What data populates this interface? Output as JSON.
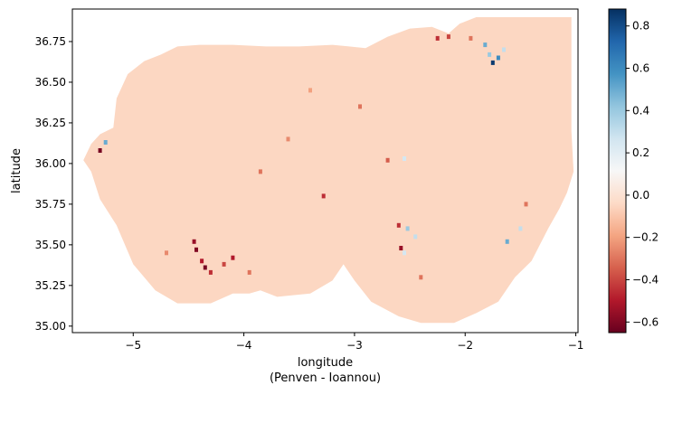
{
  "chart_data": {
    "type": "heatmap",
    "title": "",
    "xlabel": "longitude",
    "xlabel_sub": "(Penven - Ioannou)",
    "ylabel": "latitude",
    "xlim": [
      -5.55,
      -0.98
    ],
    "ylim": [
      34.96,
      36.95
    ],
    "x_ticks": [
      -5,
      -4,
      -3,
      -2,
      -1
    ],
    "x_tick_labels": [
      "−5",
      "−4",
      "−3",
      "−2",
      "−1"
    ],
    "y_ticks": [
      35.0,
      35.25,
      35.5,
      35.75,
      36.0,
      36.25,
      36.5,
      36.75
    ],
    "y_tick_labels": [
      "35.00",
      "35.25",
      "35.50",
      "35.75",
      "36.00",
      "36.25",
      "36.50",
      "36.75"
    ],
    "colorbar": {
      "cmap": "RdBu",
      "vmin": -0.65,
      "vmax": 0.88,
      "ticks": [
        -0.6,
        -0.4,
        -0.2,
        0.0,
        0.2,
        0.4,
        0.6,
        0.8
      ],
      "tick_labels": [
        "−0.6",
        "−0.4",
        "−0.2",
        "0.0",
        "0.2",
        "0.4",
        "0.6",
        "0.8"
      ]
    },
    "background_value": -0.05,
    "domain_outline_lonlat": [
      [
        -5.38,
        35.95
      ],
      [
        -5.45,
        36.02
      ],
      [
        -5.38,
        36.12
      ],
      [
        -5.3,
        36.18
      ],
      [
        -5.18,
        36.22
      ],
      [
        -5.15,
        36.4
      ],
      [
        -5.05,
        36.55
      ],
      [
        -4.9,
        36.63
      ],
      [
        -4.75,
        36.67
      ],
      [
        -4.6,
        36.72
      ],
      [
        -4.4,
        36.73
      ],
      [
        -4.1,
        36.73
      ],
      [
        -3.8,
        36.72
      ],
      [
        -3.5,
        36.72
      ],
      [
        -3.2,
        36.73
      ],
      [
        -2.9,
        36.71
      ],
      [
        -2.7,
        36.78
      ],
      [
        -2.5,
        36.83
      ],
      [
        -2.3,
        36.84
      ],
      [
        -2.15,
        36.8
      ],
      [
        -2.05,
        36.86
      ],
      [
        -1.9,
        36.9
      ],
      [
        -1.5,
        36.9
      ],
      [
        -1.04,
        36.9
      ],
      [
        -1.04,
        36.2
      ],
      [
        -1.02,
        35.95
      ],
      [
        -1.08,
        35.82
      ],
      [
        -1.15,
        35.72
      ],
      [
        -1.25,
        35.6
      ],
      [
        -1.4,
        35.4
      ],
      [
        -1.55,
        35.3
      ],
      [
        -1.7,
        35.15
      ],
      [
        -1.9,
        35.08
      ],
      [
        -2.1,
        35.02
      ],
      [
        -2.4,
        35.02
      ],
      [
        -2.6,
        35.06
      ],
      [
        -2.85,
        35.15
      ],
      [
        -3.0,
        35.28
      ],
      [
        -3.1,
        35.38
      ],
      [
        -3.2,
        35.28
      ],
      [
        -3.4,
        35.2
      ],
      [
        -3.7,
        35.18
      ],
      [
        -3.85,
        35.22
      ],
      [
        -3.95,
        35.2
      ],
      [
        -4.1,
        35.2
      ],
      [
        -4.3,
        35.14
      ],
      [
        -4.6,
        35.14
      ],
      [
        -4.8,
        35.22
      ],
      [
        -5.0,
        35.38
      ],
      [
        -5.15,
        35.62
      ],
      [
        -5.3,
        35.78
      ],
      [
        -5.38,
        35.95
      ]
    ],
    "anomalies": [
      {
        "lon": -4.45,
        "lat": 35.52,
        "value": -0.55
      },
      {
        "lon": -4.43,
        "lat": 35.47,
        "value": -0.6
      },
      {
        "lon": -4.38,
        "lat": 35.4,
        "value": -0.5
      },
      {
        "lon": -4.35,
        "lat": 35.36,
        "value": -0.62
      },
      {
        "lon": -4.3,
        "lat": 35.33,
        "value": -0.45
      },
      {
        "lon": -4.18,
        "lat": 35.38,
        "value": -0.4
      },
      {
        "lon": -4.1,
        "lat": 35.42,
        "value": -0.5
      },
      {
        "lon": -5.3,
        "lat": 36.08,
        "value": -0.62
      },
      {
        "lon": -5.25,
        "lat": 36.13,
        "value": 0.5
      },
      {
        "lon": -3.28,
        "lat": 35.8,
        "value": -0.45
      },
      {
        "lon": -2.6,
        "lat": 35.62,
        "value": -0.45
      },
      {
        "lon": -2.52,
        "lat": 35.6,
        "value": 0.4
      },
      {
        "lon": -2.45,
        "lat": 35.55,
        "value": 0.3
      },
      {
        "lon": -2.58,
        "lat": 35.48,
        "value": -0.55
      },
      {
        "lon": -2.55,
        "lat": 35.45,
        "value": 0.25
      },
      {
        "lon": -1.75,
        "lat": 36.62,
        "value": 0.85
      },
      {
        "lon": -1.7,
        "lat": 36.65,
        "value": 0.6
      },
      {
        "lon": -1.78,
        "lat": 36.67,
        "value": 0.4
      },
      {
        "lon": -1.65,
        "lat": 36.7,
        "value": 0.3
      },
      {
        "lon": -1.82,
        "lat": 36.73,
        "value": 0.5
      },
      {
        "lon": -1.62,
        "lat": 35.52,
        "value": 0.5
      },
      {
        "lon": -1.5,
        "lat": 35.6,
        "value": 0.3
      },
      {
        "lon": -1.45,
        "lat": 35.75,
        "value": -0.3
      },
      {
        "lon": -2.7,
        "lat": 36.02,
        "value": -0.35
      },
      {
        "lon": -2.55,
        "lat": 36.03,
        "value": 0.25
      },
      {
        "lon": -3.85,
        "lat": 35.95,
        "value": -0.3
      },
      {
        "lon": -3.6,
        "lat": 36.15,
        "value": -0.25
      },
      {
        "lon": -2.95,
        "lat": 36.35,
        "value": -0.3
      },
      {
        "lon": -3.4,
        "lat": 36.45,
        "value": -0.2
      },
      {
        "lon": -2.25,
        "lat": 36.77,
        "value": -0.45
      },
      {
        "lon": -2.15,
        "lat": 36.78,
        "value": -0.4
      },
      {
        "lon": -1.95,
        "lat": 36.77,
        "value": -0.3
      },
      {
        "lon": -4.7,
        "lat": 35.45,
        "value": -0.25
      },
      {
        "lon": -3.95,
        "lat": 35.33,
        "value": -0.3
      },
      {
        "lon": -2.4,
        "lat": 35.3,
        "value": -0.3
      }
    ]
  }
}
